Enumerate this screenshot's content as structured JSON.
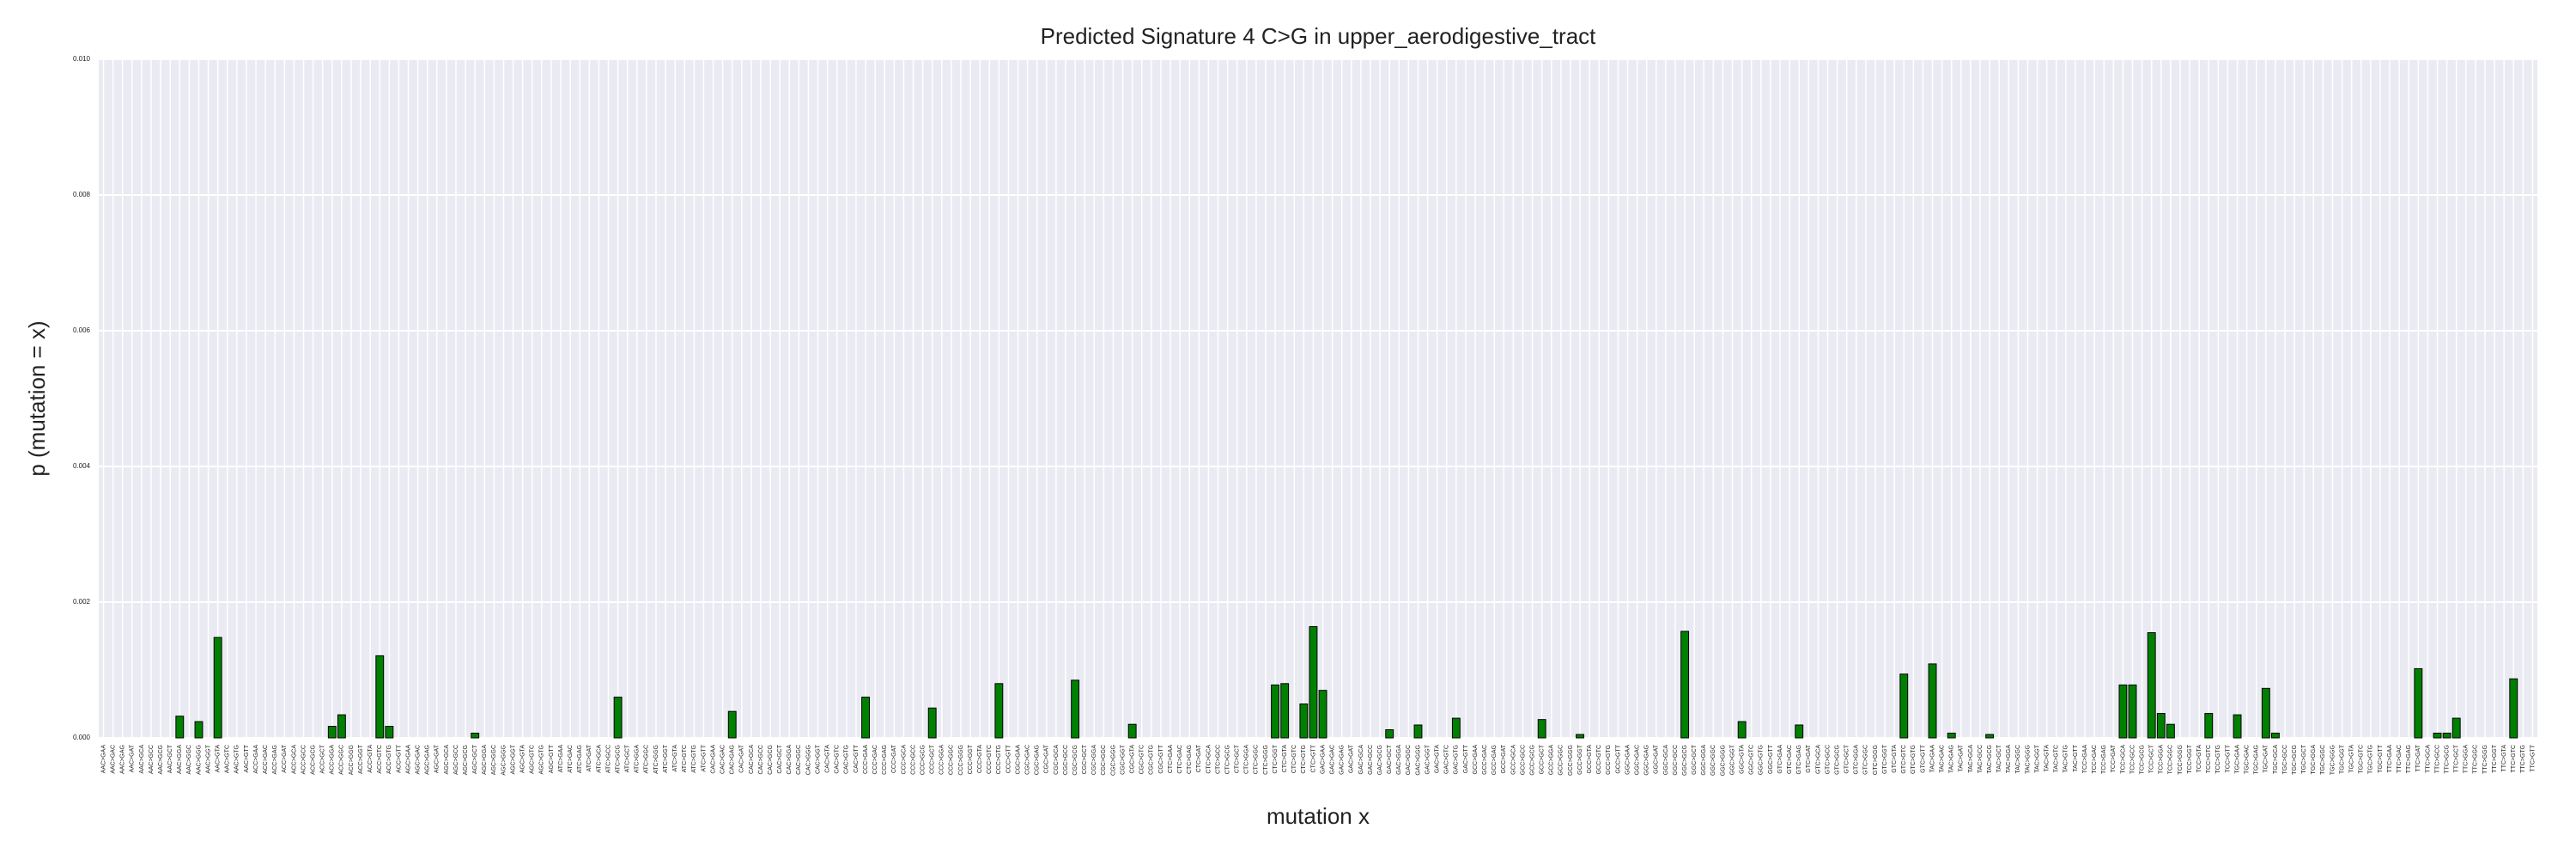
{
  "chart_data": {
    "type": "bar",
    "title": "Predicted Signature 4 C>G in upper_aerodigestive_tract",
    "xlabel": "mutation x",
    "ylabel": "p (mutation = x)",
    "color": "#008000",
    "grid": true,
    "ylim": [
      0,
      0.01
    ],
    "yticks": [
      {
        "value": 0,
        "label": "0.000"
      },
      {
        "value": 0.002,
        "label": "0.002"
      },
      {
        "value": 0.004,
        "label": "0.004"
      },
      {
        "value": 0.006,
        "label": "0.006"
      },
      {
        "value": 0.008,
        "label": "0.008"
      },
      {
        "value": 0.01,
        "label": "0.010"
      }
    ],
    "categories": [
      "AAC>GAA",
      "AAC>GAC",
      "AAC>GAG",
      "AAC>GAT",
      "AAC>GCA",
      "AAC>GCC",
      "AAC>GCG",
      "AAC>GCT",
      "AAC>GGA",
      "AAC>GGC",
      "AAC>GGG",
      "AAC>GGT",
      "AAC>GTA",
      "AAC>GTC",
      "AAC>GTG",
      "AAC>GTT",
      "ACC>GAA",
      "ACC>GAC",
      "ACC>GAG",
      "ACC>GAT",
      "ACC>GCA",
      "ACC>GCC",
      "ACC>GCG",
      "ACC>GCT",
      "ACC>GGA",
      "ACC>GGC",
      "ACC>GGG",
      "ACC>GGT",
      "ACC>GTA",
      "ACC>GTC",
      "ACC>GTG",
      "ACC>GTT",
      "AGC>GAA",
      "AGC>GAC",
      "AGC>GAG",
      "AGC>GAT",
      "AGC>GCA",
      "AGC>GCC",
      "AGC>GCG",
      "AGC>GCT",
      "AGC>GGA",
      "AGC>GGC",
      "AGC>GGG",
      "AGC>GGT",
      "AGC>GTA",
      "AGC>GTC",
      "AGC>GTG",
      "AGC>GTT",
      "ATC>GAA",
      "ATC>GAC",
      "ATC>GAG",
      "ATC>GAT",
      "ATC>GCA",
      "ATC>GCC",
      "ATC>GCG",
      "ATC>GCT",
      "ATC>GGA",
      "ATC>GGC",
      "ATC>GGG",
      "ATC>GGT",
      "ATC>GTA",
      "ATC>GTC",
      "ATC>GTG",
      "ATC>GTT",
      "CAC>GAA",
      "CAC>GAC",
      "CAC>GAG",
      "CAC>GAT",
      "CAC>GCA",
      "CAC>GCC",
      "CAC>GCG",
      "CAC>GCT",
      "CAC>GGA",
      "CAC>GGC",
      "CAC>GGG",
      "CAC>GGT",
      "CAC>GTA",
      "CAC>GTC",
      "CAC>GTG",
      "CAC>GTT",
      "CCC>GAA",
      "CCC>GAC",
      "CCC>GAG",
      "CCC>GAT",
      "CCC>GCA",
      "CCC>GCC",
      "CCC>GCG",
      "CCC>GCT",
      "CCC>GGA",
      "CCC>GGC",
      "CCC>GGG",
      "CCC>GGT",
      "CCC>GTA",
      "CCC>GTC",
      "CCC>GTG",
      "CCC>GTT",
      "CGC>GAA",
      "CGC>GAC",
      "CGC>GAG",
      "CGC>GAT",
      "CGC>GCA",
      "CGC>GCC",
      "CGC>GCG",
      "CGC>GCT",
      "CGC>GGA",
      "CGC>GGC",
      "CGC>GGG",
      "CGC>GGT",
      "CGC>GTA",
      "CGC>GTC",
      "CGC>GTG",
      "CGC>GTT",
      "CTC>GAA",
      "CTC>GAC",
      "CTC>GAG",
      "CTC>GAT",
      "CTC>GCA",
      "CTC>GCC",
      "CTC>GCG",
      "CTC>GCT",
      "CTC>GGA",
      "CTC>GGC",
      "CTC>GGG",
      "CTC>GGT",
      "CTC>GTA",
      "CTC>GTC",
      "CTC>GTG",
      "CTC>GTT",
      "GAC>GAA",
      "GAC>GAC",
      "GAC>GAG",
      "GAC>GAT",
      "GAC>GCA",
      "GAC>GCC",
      "GAC>GCG",
      "GAC>GCT",
      "GAC>GGA",
      "GAC>GGC",
      "GAC>GGG",
      "GAC>GGT",
      "GAC>GTA",
      "GAC>GTC",
      "GAC>GTG",
      "GAC>GTT",
      "GCC>GAA",
      "GCC>GAC",
      "GCC>GAG",
      "GCC>GAT",
      "GCC>GCA",
      "GCC>GCC",
      "GCC>GCG",
      "GCC>GCT",
      "GCC>GGA",
      "GCC>GGC",
      "GCC>GGG",
      "GCC>GGT",
      "GCC>GTA",
      "GCC>GTC",
      "GCC>GTG",
      "GCC>GTT",
      "GGC>GAA",
      "GGC>GAC",
      "GGC>GAG",
      "GGC>GAT",
      "GGC>GCA",
      "GGC>GCC",
      "GGC>GCG",
      "GGC>GCT",
      "GGC>GGA",
      "GGC>GGC",
      "GGC>GGG",
      "GGC>GGT",
      "GGC>GTA",
      "GGC>GTC",
      "GGC>GTG",
      "GGC>GTT",
      "GTC>GAA",
      "GTC>GAC",
      "GTC>GAG",
      "GTC>GAT",
      "GTC>GCA",
      "GTC>GCC",
      "GTC>GCG",
      "GTC>GCT",
      "GTC>GGA",
      "GTC>GGC",
      "GTC>GGG",
      "GTC>GGT",
      "GTC>GTA",
      "GTC>GTC",
      "GTC>GTG",
      "GTC>GTT",
      "TAC>GAA",
      "TAC>GAC",
      "TAC>GAG",
      "TAC>GAT",
      "TAC>GCA",
      "TAC>GCC",
      "TAC>GCG",
      "TAC>GCT",
      "TAC>GGA",
      "TAC>GGC",
      "TAC>GGG",
      "TAC>GGT",
      "TAC>GTA",
      "TAC>GTC",
      "TAC>GTG",
      "TAC>GTT",
      "TCC>GAA",
      "TCC>GAC",
      "TCC>GAG",
      "TCC>GAT",
      "TCC>GCA",
      "TCC>GCC",
      "TCC>GCG",
      "TCC>GCT",
      "TCC>GGA",
      "TCC>GGC",
      "TCC>GGG",
      "TCC>GGT",
      "TCC>GTA",
      "TCC>GTC",
      "TCC>GTG",
      "TCC>GTT",
      "TGC>GAA",
      "TGC>GAC",
      "TGC>GAG",
      "TGC>GAT",
      "TGC>GCA",
      "TGC>GCC",
      "TGC>GCG",
      "TGC>GCT",
      "TGC>GGA",
      "TGC>GGC",
      "TGC>GGG",
      "TGC>GGT",
      "TGC>GTA",
      "TGC>GTC",
      "TGC>GTG",
      "TGC>GTT",
      "TTC>GAA",
      "TTC>GAC",
      "TTC>GAG",
      "TTC>GAT",
      "TTC>GCA",
      "TTC>GCC",
      "TTC>GCG",
      "TTC>GCT",
      "TTC>GGA",
      "TTC>GGC",
      "TTC>GGG",
      "TTC>GGT",
      "TTC>GTA",
      "TTC>GTC",
      "TTC>GTG",
      "TTC>GTT"
    ],
    "values": [
      0,
      0,
      0,
      0,
      0,
      0,
      0,
      0,
      0.00032,
      0,
      0.00024,
      0,
      0.00148,
      0,
      0,
      0,
      0,
      0,
      0,
      0,
      0,
      0,
      0,
      0,
      0.00017,
      0.00034,
      0,
      0,
      0,
      0.00121,
      0.00017,
      0,
      0,
      0,
      0,
      0,
      0,
      0,
      0,
      7e-05,
      0,
      0,
      0,
      0,
      0,
      0,
      0,
      0,
      0,
      0,
      0,
      0,
      0,
      0,
      0.0006,
      0,
      0,
      0,
      0,
      0,
      0,
      0,
      0,
      0,
      0,
      0,
      0.00039,
      0,
      0,
      0,
      0,
      0,
      0,
      0,
      0,
      0,
      0,
      0,
      0,
      0,
      0.0006,
      0,
      0,
      0,
      0,
      0,
      0,
      0.00044,
      0,
      0,
      0,
      0,
      0,
      0,
      0.0008,
      0,
      0,
      0,
      0,
      0,
      0,
      0,
      0.00085,
      0,
      0,
      0,
      0,
      0,
      0.0002,
      0,
      0,
      0,
      0,
      0,
      0,
      0,
      0,
      0,
      0,
      0,
      0,
      0,
      0,
      0.00078,
      0.0008,
      0,
      0.0005,
      0.00164,
      0.0007,
      0,
      0,
      0,
      0,
      0,
      0,
      0.00012,
      0,
      0,
      0.00019,
      0,
      0,
      0,
      0.00029,
      0,
      0,
      0,
      0,
      0,
      0,
      0,
      0,
      0.00027,
      0,
      0,
      0,
      5e-05,
      0,
      0,
      0,
      0,
      0,
      0,
      0,
      0,
      0,
      0,
      0.00157,
      0,
      0,
      0,
      0,
      0,
      0.00024,
      0,
      0,
      0,
      0,
      0,
      0.00019,
      0,
      0,
      0,
      0,
      0,
      0,
      0,
      0,
      0,
      0,
      0.00094,
      0,
      0,
      0.00109,
      0,
      7e-05,
      0,
      0,
      0,
      5e-05,
      0,
      0,
      0,
      0,
      0,
      0,
      0,
      0,
      0,
      0,
      0,
      0,
      0,
      0.00078,
      0.00078,
      0,
      0.00155,
      0.00036,
      0.0002,
      0,
      0,
      0,
      0.00036,
      0,
      0,
      0.00034,
      0,
      0,
      0.00073,
      7e-05,
      0,
      0,
      0,
      0,
      0,
      0,
      0,
      0,
      0,
      0,
      0,
      0,
      0,
      0,
      0.00102,
      0,
      7e-05,
      7e-05,
      0.00029,
      0,
      0,
      0,
      0,
      0,
      0.00087,
      0,
      0
    ]
  }
}
